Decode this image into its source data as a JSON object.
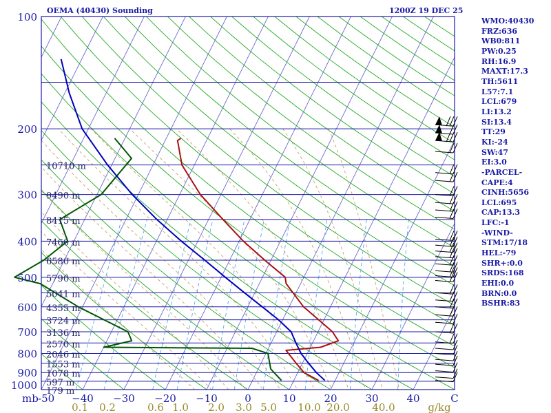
{
  "header": {
    "station": "OEMA (40430) Sounding",
    "time": "1200Z 19 DEC 25"
  },
  "indices": [
    "WMO:40430",
    "FRZ:636",
    "WB0:811",
    "PW:0.25",
    "RH:16.9",
    "MAXT:17.3",
    "TH:5611",
    "L57:7.1",
    "LCL:679",
    "LI:13.2",
    "SI:13.4",
    "TT:29",
    "KI:-24",
    "SW:47",
    "EI:3.0",
    "-PARCEL-",
    "CAPE:4",
    "CINH:5656",
    "LCL:695",
    "CAP:13.3",
    "LFC:-1",
    "-WIND-",
    "STM:17/18",
    "HEL:-79",
    "SHR+:0.0",
    "SRDS:168",
    "EHI:0.0",
    "BRN:0.0",
    "BSHR:83"
  ],
  "colors": {
    "frame": "#1a1aa6",
    "isobar": "#1a1aa6",
    "isotherm": "#6a6ad0",
    "dry_adiabat": "#22aa22",
    "moist_adiabat": "#c8a06a",
    "mixing_ratio": "#55aaee",
    "temperature": "#aa1111",
    "dewpoint": "#005500",
    "parcel": "#0000bb",
    "mixing_label": "#9a8a2a",
    "wind": "#000000"
  },
  "chart_data": {
    "type": "line",
    "title": "OEMA (40430) Sounding",
    "subtitle": "1200Z 19 DEC 25",
    "pressure_levels": [
      100,
      200,
      300,
      400,
      500,
      600,
      700,
      800,
      900,
      1000
    ],
    "pressure_axis_label": "mb",
    "temperature_ticks": [
      -50,
      -40,
      -30,
      -20,
      -10,
      0,
      10,
      20,
      30,
      40
    ],
    "temperature_tick_labels": [
      "-50",
      "−40",
      "−30",
      "−20",
      "−10",
      "0",
      "10",
      "20",
      "30",
      "40"
    ],
    "temperature_unit": "C",
    "xlim": [
      -50,
      50
    ],
    "ylim": [
      1000,
      100
    ],
    "height_labels": [
      {
        "p": 250,
        "label": "10710 m"
      },
      {
        "p": 300,
        "label": "9490 m"
      },
      {
        "p": 350,
        "label": "8415 m"
      },
      {
        "p": 400,
        "label": "7460 m"
      },
      {
        "p": 450,
        "label": "6580 m"
      },
      {
        "p": 500,
        "label": "5790 m"
      },
      {
        "p": 550,
        "label": "5041 m"
      },
      {
        "p": 600,
        "label": "4355 m"
      },
      {
        "p": 650,
        "label": "3724 m"
      },
      {
        "p": 700,
        "label": "3136 m"
      },
      {
        "p": 750,
        "label": "2570 m"
      },
      {
        "p": 800,
        "label": "2046 m"
      },
      {
        "p": 850,
        "label": "1553 m"
      },
      {
        "p": 900,
        "label": "1078 m"
      },
      {
        "p": 950,
        "label": "597 m"
      },
      {
        "p": 1000,
        "label": "179 m"
      }
    ],
    "mixing_ratio_labels": [
      "0.1",
      "0.2",
      "0.6",
      "1.0",
      "2.0",
      "3.0",
      "5.0",
      "10.0",
      "20.0",
      "40.0"
    ],
    "mixing_ratio_values": [
      0.1,
      0.2,
      0.6,
      1.0,
      2.0,
      3.0,
      5.0,
      10.0,
      20.0,
      40.0
    ],
    "mixing_ratio_unit": "g/kg",
    "series": [
      {
        "name": "Temperature",
        "points": [
          {
            "p": 212,
            "t": -46.5
          },
          {
            "p": 215,
            "t": -47
          },
          {
            "p": 250,
            "t": -43
          },
          {
            "p": 300,
            "t": -35
          },
          {
            "p": 350,
            "t": -26.5
          },
          {
            "p": 400,
            "t": -19
          },
          {
            "p": 450,
            "t": -11.5
          },
          {
            "p": 500,
            "t": -4.5
          },
          {
            "p": 520,
            "t": -3.5
          },
          {
            "p": 600,
            "t": 3.5
          },
          {
            "p": 700,
            "t": 13.5
          },
          {
            "p": 740,
            "t": 16
          },
          {
            "p": 770,
            "t": 12.5
          },
          {
            "p": 785,
            "t": 4.5
          },
          {
            "p": 850,
            "t": 8.5
          },
          {
            "p": 900,
            "t": 11.5
          },
          {
            "p": 945,
            "t": 16
          }
        ]
      },
      {
        "name": "Dewpoint",
        "points": [
          {
            "p": 212,
            "t": -62.5
          },
          {
            "p": 240,
            "t": -56
          },
          {
            "p": 300,
            "t": -59
          },
          {
            "p": 350,
            "t": -66
          },
          {
            "p": 400,
            "t": -61.5
          },
          {
            "p": 450,
            "t": -65
          },
          {
            "p": 500,
            "t": -70
          },
          {
            "p": 520,
            "t": -63
          },
          {
            "p": 600,
            "t": -51
          },
          {
            "p": 700,
            "t": -36
          },
          {
            "p": 740,
            "t": -34
          },
          {
            "p": 770,
            "t": -40
          },
          {
            "p": 775,
            "t": -4
          },
          {
            "p": 800,
            "t": 0.5
          },
          {
            "p": 880,
            "t": 3
          },
          {
            "p": 945,
            "t": 7
          }
        ]
      },
      {
        "name": "Parcel",
        "points": [
          {
            "p": 130,
            "t": -85
          },
          {
            "p": 160,
            "t": -79
          },
          {
            "p": 200,
            "t": -71.5
          },
          {
            "p": 250,
            "t": -61
          },
          {
            "p": 300,
            "t": -51.5
          },
          {
            "p": 350,
            "t": -42.5
          },
          {
            "p": 400,
            "t": -34
          },
          {
            "p": 450,
            "t": -26
          },
          {
            "p": 500,
            "t": -19
          },
          {
            "p": 550,
            "t": -12.5
          },
          {
            "p": 600,
            "t": -6.5
          },
          {
            "p": 650,
            "t": -1
          },
          {
            "p": 700,
            "t": 3.5
          },
          {
            "p": 750,
            "t": 6
          },
          {
            "p": 800,
            "t": 8.5
          },
          {
            "p": 850,
            "t": 11.5
          },
          {
            "p": 900,
            "t": 14.5
          },
          {
            "p": 945,
            "t": 17.5
          }
        ]
      }
    ],
    "wind_profile": [
      {
        "p": 195,
        "barbs": 3
      },
      {
        "p": 205,
        "barbs": 2
      },
      {
        "p": 215,
        "barbs": 3
      },
      {
        "p": 230,
        "barbs": 2
      },
      {
        "p": 262,
        "barbs": 2
      },
      {
        "p": 275,
        "barbs": 2
      },
      {
        "p": 300,
        "barbs": 2
      },
      {
        "p": 315,
        "barbs": 2
      },
      {
        "p": 330,
        "barbs": 2
      },
      {
        "p": 345,
        "barbs": 2
      },
      {
        "p": 395,
        "barbs": 2
      },
      {
        "p": 410,
        "barbs": 2
      },
      {
        "p": 425,
        "barbs": 2
      },
      {
        "p": 440,
        "barbs": 2
      },
      {
        "p": 460,
        "barbs": 2
      },
      {
        "p": 480,
        "barbs": 2
      },
      {
        "p": 495,
        "barbs": 2
      },
      {
        "p": 510,
        "barbs": 2
      },
      {
        "p": 550,
        "barbs": 2
      },
      {
        "p": 575,
        "barbs": 2
      },
      {
        "p": 600,
        "barbs": 2
      },
      {
        "p": 630,
        "barbs": 2
      },
      {
        "p": 660,
        "barbs": 2
      },
      {
        "p": 700,
        "barbs": 2
      },
      {
        "p": 745,
        "barbs": 2
      },
      {
        "p": 775,
        "barbs": 1
      },
      {
        "p": 800,
        "barbs": 1
      },
      {
        "p": 830,
        "barbs": 1
      },
      {
        "p": 855,
        "barbs": 1
      },
      {
        "p": 890,
        "barbs": 1
      },
      {
        "p": 925,
        "barbs": 1
      },
      {
        "p": 945,
        "barbs": 1
      }
    ]
  }
}
